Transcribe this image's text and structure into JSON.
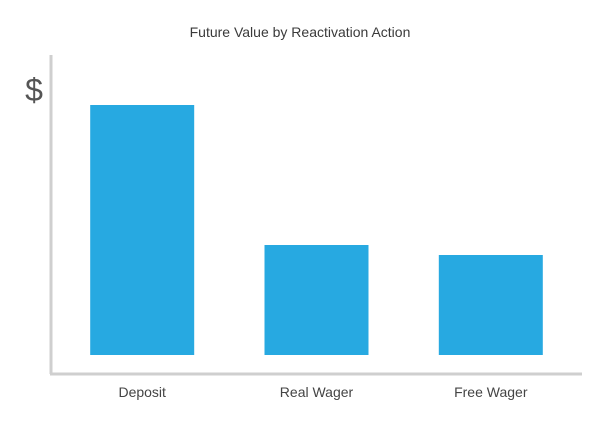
{
  "chart_data": {
    "type": "bar",
    "title": "Future Value by Reactivation Action",
    "ylabel": "$",
    "xlabel": "",
    "categories": [
      "Deposit",
      "Real Wager",
      "Free Wager"
    ],
    "values": [
      100,
      44,
      40
    ],
    "ylim": [
      0,
      110
    ],
    "grid": false,
    "legend": "none",
    "colors": {
      "bar": "#27a9e1",
      "axis": "#cfcfcf",
      "text": "#444444"
    }
  }
}
